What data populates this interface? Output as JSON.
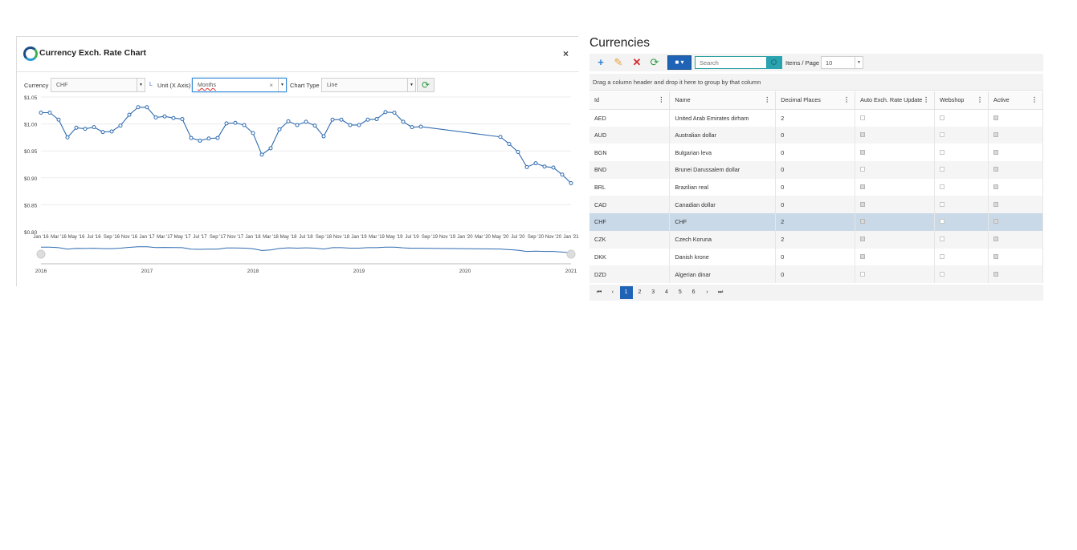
{
  "chart_window": {
    "title": "Currency Exch. Rate Chart",
    "close_label": "×",
    "currency_label": "Currency",
    "currency_value": "CHF",
    "marker_text": "L",
    "unit_label": "Unit (X Axis)",
    "unit_value": "Months",
    "clear_label": "×",
    "chart_type_label": "Chart Type",
    "chart_type_value": "Line",
    "refresh_icon": "refresh-icon"
  },
  "chart_data": {
    "type": "line",
    "line_color": "#2f6bb0",
    "y_ticks": [
      "$1.05",
      "$1.00",
      "$0.95",
      "$0.90",
      "$0.85",
      "$0.80"
    ],
    "ylim": [
      0.8,
      1.05
    ],
    "x_tick_labels": [
      "Jan '16",
      "Mar '16",
      "May '16",
      "Jul '16",
      "Sep '16",
      "Nov '16",
      "Jan '17",
      "Mar '17",
      "May '17",
      "Jul '17",
      "Sep '17",
      "Nov '17",
      "Jan '18",
      "Mar '18",
      "May '18",
      "Jul '18",
      "Sep '18",
      "Nov '18",
      "Jan '19",
      "Mar '19",
      "May '19",
      "Jul '19",
      "Sep '19",
      "Nov '19",
      "Jan '20",
      "Mar '20",
      "May '20",
      "Jul '20",
      "Sep '20",
      "Nov '20",
      "Jan '21"
    ],
    "points": [
      [
        "2016-01",
        1.021
      ],
      [
        "2016-02",
        1.021
      ],
      [
        "2016-03",
        1.008
      ],
      [
        "2016-04",
        0.975
      ],
      [
        "2016-05",
        0.993
      ],
      [
        "2016-06",
        0.991
      ],
      [
        "2016-07",
        0.994
      ],
      [
        "2016-08",
        0.985
      ],
      [
        "2016-09",
        0.986
      ],
      [
        "2016-10",
        0.997
      ],
      [
        "2016-11",
        1.017
      ],
      [
        "2016-12",
        1.031
      ],
      [
        "2017-01",
        1.031
      ],
      [
        "2017-02",
        1.012
      ],
      [
        "2017-03",
        1.014
      ],
      [
        "2017-04",
        1.011
      ],
      [
        "2017-05",
        1.009
      ],
      [
        "2017-06",
        0.974
      ],
      [
        "2017-07",
        0.969
      ],
      [
        "2017-08",
        0.973
      ],
      [
        "2017-09",
        0.974
      ],
      [
        "2017-10",
        1.001
      ],
      [
        "2017-11",
        1.002
      ],
      [
        "2017-12",
        0.998
      ],
      [
        "2018-01",
        0.983
      ],
      [
        "2018-02",
        0.943
      ],
      [
        "2018-03",
        0.955
      ],
      [
        "2018-04",
        0.99
      ],
      [
        "2018-05",
        1.005
      ],
      [
        "2018-06",
        0.998
      ],
      [
        "2018-07",
        1.004
      ],
      [
        "2018-08",
        0.997
      ],
      [
        "2018-09",
        0.977
      ],
      [
        "2018-10",
        1.008
      ],
      [
        "2018-11",
        1.008
      ],
      [
        "2018-12",
        0.998
      ],
      [
        "2019-01",
        0.998
      ],
      [
        "2019-02",
        1.008
      ],
      [
        "2019-03",
        1.009
      ],
      [
        "2019-04",
        1.022
      ],
      [
        "2019-05",
        1.021
      ],
      [
        "2019-06",
        1.004
      ],
      [
        "2019-07",
        0.994
      ],
      [
        "2019-08",
        0.995
      ],
      [
        "2020-05",
        0.976
      ],
      [
        "2020-06",
        0.963
      ],
      [
        "2020-07",
        0.948
      ],
      [
        "2020-08",
        0.92
      ],
      [
        "2020-09",
        0.927
      ],
      [
        "2020-10",
        0.921
      ],
      [
        "2020-11",
        0.919
      ],
      [
        "2020-12",
        0.906
      ],
      [
        "2021-01",
        0.89
      ]
    ],
    "navigator_years": [
      "2016",
      "2017",
      "2018",
      "2019",
      "2020",
      "2021"
    ],
    "grid": true
  },
  "grid": {
    "title": "Currencies",
    "add_icon": "plus-icon",
    "edit_icon": "pencil-icon",
    "delete_icon": "delete-icon",
    "refresh_icon": "refresh-icon",
    "search_placeholder": "Search",
    "items_per_page_label": "Items / Page",
    "items_per_page_value": "10",
    "group_hint": "Drag a column header and drop it here to group by that column",
    "columns": [
      "Id",
      "Name",
      "Decimal Places",
      "Auto Exch. Rate Update",
      "Webshop",
      "Active"
    ],
    "rows": [
      {
        "id": "AED",
        "name": "United Arab Emirates dirham",
        "decimals": "2",
        "auto": false,
        "webshop": false,
        "active": true
      },
      {
        "id": "AUD",
        "name": "Australian dollar",
        "decimals": "0",
        "auto": true,
        "webshop": false,
        "active": true
      },
      {
        "id": "BGN",
        "name": "Bulgarian leva",
        "decimals": "0",
        "auto": true,
        "webshop": false,
        "active": true
      },
      {
        "id": "BND",
        "name": "Brunei Darussalem dollar",
        "decimals": "0",
        "auto": false,
        "webshop": false,
        "active": true
      },
      {
        "id": "BRL",
        "name": "Brazilian real",
        "decimals": "0",
        "auto": true,
        "webshop": false,
        "active": true
      },
      {
        "id": "CAD",
        "name": "Canadian dollar",
        "decimals": "0",
        "auto": true,
        "webshop": false,
        "active": true
      },
      {
        "id": "CHF",
        "name": "CHF",
        "decimals": "2",
        "auto": true,
        "webshop": false,
        "active": true
      },
      {
        "id": "CZK",
        "name": "Czech Koruna",
        "decimals": "2",
        "auto": true,
        "webshop": false,
        "active": true
      },
      {
        "id": "DKK",
        "name": "Danish krone",
        "decimals": "0",
        "auto": true,
        "webshop": false,
        "active": true
      },
      {
        "id": "DZD",
        "name": "Algerian dinar",
        "decimals": "0",
        "auto": false,
        "webshop": false,
        "active": true
      }
    ],
    "selected_row": 6,
    "pages": [
      "1",
      "2",
      "3",
      "4",
      "5",
      "6"
    ],
    "current_page": "1",
    "pager_first": "⏮",
    "pager_prev": "‹",
    "pager_next": "›",
    "pager_last": "⏭"
  }
}
